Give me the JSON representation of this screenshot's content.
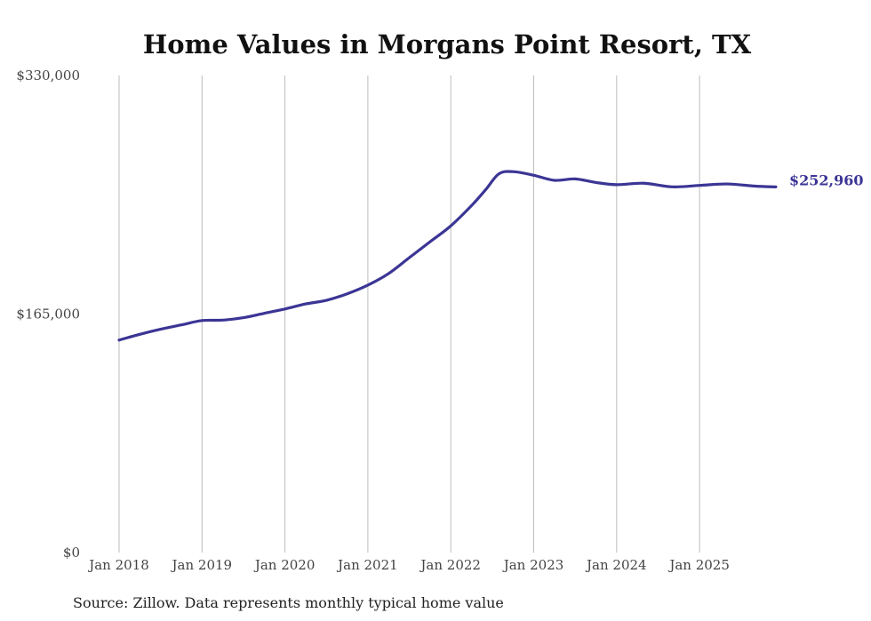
{
  "colors": {
    "series": "#3b3595",
    "grid": "#bdbdbd",
    "title": "#111111",
    "axis_text": "#444444"
  },
  "chart_data": {
    "type": "line",
    "title": "Home Values in Morgans Point Resort, TX",
    "source": "Source: Zillow. Data represents monthly typical home value",
    "xlabel": "",
    "ylabel": "",
    "grid": "vertical",
    "ylim": [
      0,
      330000
    ],
    "y_ticks": [
      {
        "value": 0,
        "label": "$0"
      },
      {
        "value": 165000,
        "label": "$165,000"
      },
      {
        "value": 330000,
        "label": "$330,000"
      }
    ],
    "x_ticks": [
      {
        "value": 2018,
        "label": "Jan 2018"
      },
      {
        "value": 2019,
        "label": "Jan 2019"
      },
      {
        "value": 2020,
        "label": "Jan 2020"
      },
      {
        "value": 2021,
        "label": "Jan 2021"
      },
      {
        "value": 2022,
        "label": "Jan 2022"
      },
      {
        "value": 2023,
        "label": "Jan 2023"
      },
      {
        "value": 2024,
        "label": "Jan 2024"
      },
      {
        "value": 2025,
        "label": "Jan 2025"
      }
    ],
    "end_label": "$252,960",
    "series": [
      {
        "name": "Typical home value",
        "points": [
          {
            "x": 2018.0,
            "y": 147000
          },
          {
            "x": 2018.25,
            "y": 151000
          },
          {
            "x": 2018.5,
            "y": 154500
          },
          {
            "x": 2018.75,
            "y": 157500
          },
          {
            "x": 2019.0,
            "y": 160500
          },
          {
            "x": 2019.25,
            "y": 160800
          },
          {
            "x": 2019.5,
            "y": 162500
          },
          {
            "x": 2019.75,
            "y": 165500
          },
          {
            "x": 2020.0,
            "y": 168500
          },
          {
            "x": 2020.25,
            "y": 172000
          },
          {
            "x": 2020.5,
            "y": 174500
          },
          {
            "x": 2020.75,
            "y": 179000
          },
          {
            "x": 2021.0,
            "y": 185000
          },
          {
            "x": 2021.25,
            "y": 193000
          },
          {
            "x": 2021.5,
            "y": 204000
          },
          {
            "x": 2021.75,
            "y": 215000
          },
          {
            "x": 2022.0,
            "y": 226000
          },
          {
            "x": 2022.25,
            "y": 240000
          },
          {
            "x": 2022.42,
            "y": 251000
          },
          {
            "x": 2022.58,
            "y": 262000
          },
          {
            "x": 2022.75,
            "y": 263500
          },
          {
            "x": 2023.0,
            "y": 261000
          },
          {
            "x": 2023.25,
            "y": 257500
          },
          {
            "x": 2023.5,
            "y": 258500
          },
          {
            "x": 2023.75,
            "y": 256000
          },
          {
            "x": 2024.0,
            "y": 254500
          },
          {
            "x": 2024.33,
            "y": 255500
          },
          {
            "x": 2024.67,
            "y": 253000
          },
          {
            "x": 2025.0,
            "y": 254000
          },
          {
            "x": 2025.33,
            "y": 255000
          },
          {
            "x": 2025.67,
            "y": 253500
          },
          {
            "x": 2025.92,
            "y": 252960
          }
        ]
      }
    ]
  }
}
